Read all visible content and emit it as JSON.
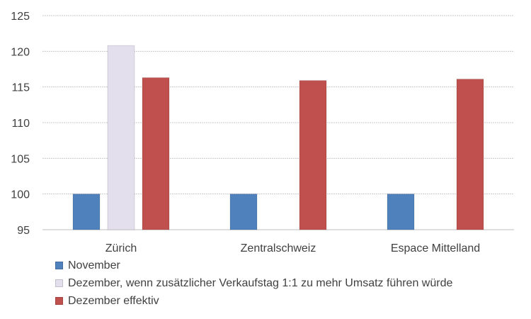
{
  "chart_data": {
    "type": "bar",
    "categories": [
      "Zürich",
      "Zentralschweiz",
      "Espace Mittelland"
    ],
    "series": [
      {
        "name": "November",
        "color": "#4F81BD",
        "values": [
          100,
          100,
          100
        ]
      },
      {
        "name": "Dezember, wenn zusätzlicher Verkaufstag 1:1 zu mehr Umsatz führen würde",
        "color": "#E4DFEC",
        "values": [
          120.8,
          null,
          null
        ]
      },
      {
        "name": "Dezember effektiv",
        "color": "#C0504D",
        "values": [
          116.3,
          115.9,
          116.1
        ]
      }
    ],
    "ylim": [
      95,
      125
    ],
    "yticks": [
      95,
      100,
      105,
      110,
      115,
      120,
      125
    ],
    "grid": true,
    "legend_position": "bottom-left"
  }
}
